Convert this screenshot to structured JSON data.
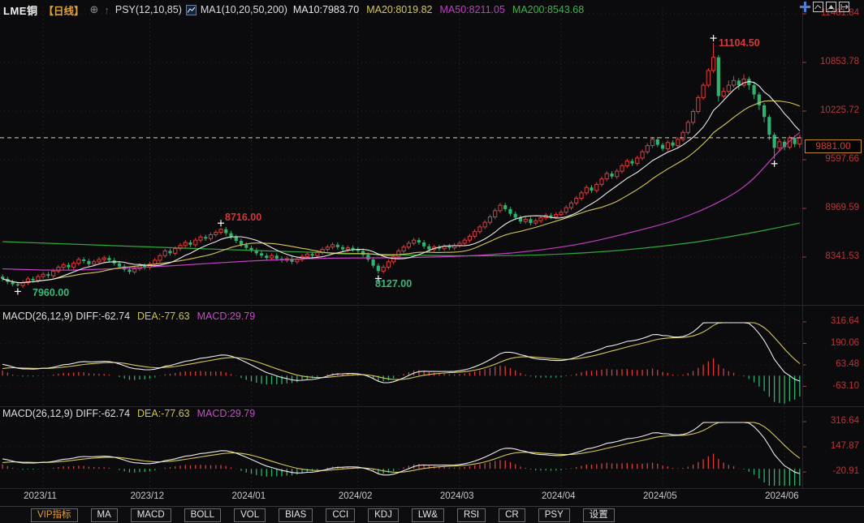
{
  "header": {
    "symbol": "LME铜",
    "period_label": "【日线】",
    "compare_icon_glyph": "⊕",
    "signal_arrow_glyph": "↑",
    "psy_label": "PSY(12,10,85)",
    "ma_group_label": "MA1(10,20,50,200)",
    "ma_readouts": [
      {
        "text": "MA10:7983.70",
        "color": "#e8e8e8"
      },
      {
        "text": "MA20:8019.82",
        "color": "#d6c858"
      },
      {
        "text": "MA50:8211.05",
        "color": "#c23ec2"
      },
      {
        "text": "MA200:8543.68",
        "color": "#3cb54a"
      }
    ]
  },
  "y_axis": {
    "tick_labels": [
      "11481.84",
      "10853.78",
      "10225.72",
      "9597.66",
      "8969.59",
      "8341.53"
    ],
    "last_price_label": "9881.00"
  },
  "x_axis": {
    "labels": [
      "2023/11",
      "2023/12",
      "2024/01",
      "2024/02",
      "2024/03",
      "2024/04",
      "2024/05",
      "2024/06"
    ]
  },
  "macd_panels": [
    {
      "name": "MACD(26,12,9)",
      "diff": "DIFF:-62.74",
      "dea": "DEA:-77.63",
      "macd": "MACD:29.79",
      "tick_labels": [
        "316.64",
        "190.06",
        "63.48",
        "-63.10"
      ]
    },
    {
      "name": "MACD(26,12,9)",
      "diff": "DIFF:-62.74",
      "dea": "DEA:-77.63",
      "macd": "MACD:29.79",
      "tick_labels": [
        "316.64",
        "147.87",
        "-20.91"
      ]
    }
  ],
  "toolbar": {
    "items": [
      "VIP指标",
      "MA",
      "MACD",
      "BOLL",
      "VOL",
      "BIAS",
      "CCI",
      "KDJ",
      "LW&",
      "RSI",
      "CR",
      "PSY",
      "设置"
    ]
  },
  "colors": {
    "up": "#e23b3b",
    "down": "#2fb36e",
    "ma10": "#ececec",
    "ma20": "#d6c858",
    "ma50": "#c23ec2",
    "ma200": "#2eaa3c",
    "axis_text": "#b13a3a",
    "last_price_line": "#e6d3ae",
    "annotation_up": "#d03a3a",
    "annotation_down": "#3cb878",
    "vip_accent": "#e0a040"
  },
  "chart_data": {
    "type": "candlestick+macd",
    "symbol": "LME铜",
    "period": "日线",
    "y_axis": {
      "gridline_prices": [
        11481.84,
        10853.78,
        10225.72,
        9597.66,
        8969.59,
        8341.53
      ],
      "last_price": 9881.0
    },
    "x_axis": {
      "labels": [
        "2023/11",
        "2023/12",
        "2024/01",
        "2024/02",
        "2024/03",
        "2024/04",
        "2024/05",
        "2024/06"
      ],
      "tick_candle_indices": [
        8,
        29,
        49,
        70,
        90,
        110,
        130,
        154
      ]
    },
    "extremes": [
      {
        "index": 3,
        "type": "low",
        "price": 7960.0,
        "label": "7960.00"
      },
      {
        "index": 43,
        "type": "high",
        "price": 8716.0,
        "label": "8716.00"
      },
      {
        "index": 74,
        "type": "low",
        "price": 8127.0,
        "label": "8127.00"
      },
      {
        "index": 140,
        "type": "high",
        "price": 11104.5,
        "label": "11104.50"
      },
      {
        "index": 152,
        "type": "low",
        "price": 9610,
        "label": ""
      }
    ],
    "candles": [
      [
        8090,
        8120,
        8030,
        8060
      ],
      [
        8060,
        8090,
        7990,
        8020
      ],
      [
        8020,
        8050,
        7965,
        7990
      ],
      [
        7990,
        8020,
        7960,
        7975
      ],
      [
        7975,
        8040,
        7945,
        8010
      ],
      [
        8010,
        8090,
        7980,
        8060
      ],
      [
        8060,
        8090,
        8010,
        8040
      ],
      [
        8040,
        8120,
        8010,
        8090
      ],
      [
        8090,
        8150,
        8060,
        8120
      ],
      [
        8120,
        8150,
        8070,
        8100
      ],
      [
        8100,
        8190,
        8070,
        8160
      ],
      [
        8160,
        8240,
        8130,
        8210
      ],
      [
        8210,
        8270,
        8180,
        8240
      ],
      [
        8240,
        8270,
        8180,
        8210
      ],
      [
        8210,
        8290,
        8180,
        8260
      ],
      [
        8260,
        8340,
        8230,
        8310
      ],
      [
        8310,
        8340,
        8260,
        8290
      ],
      [
        8290,
        8320,
        8220,
        8250
      ],
      [
        8250,
        8310,
        8220,
        8280
      ],
      [
        8280,
        8340,
        8250,
        8310
      ],
      [
        8310,
        8360,
        8280,
        8330
      ],
      [
        8330,
        8360,
        8270,
        8300
      ],
      [
        8300,
        8330,
        8230,
        8260
      ],
      [
        8260,
        8290,
        8190,
        8220
      ],
      [
        8220,
        8250,
        8150,
        8180
      ],
      [
        8180,
        8210,
        8120,
        8150
      ],
      [
        8150,
        8220,
        8120,
        8190
      ],
      [
        8190,
        8260,
        8160,
        8230
      ],
      [
        8230,
        8260,
        8180,
        8210
      ],
      [
        8210,
        8280,
        8180,
        8250
      ],
      [
        8250,
        8330,
        8220,
        8300
      ],
      [
        8300,
        8390,
        8270,
        8360
      ],
      [
        8360,
        8450,
        8330,
        8420
      ],
      [
        8420,
        8450,
        8360,
        8390
      ],
      [
        8390,
        8480,
        8360,
        8450
      ],
      [
        8450,
        8520,
        8420,
        8490
      ],
      [
        8490,
        8560,
        8460,
        8530
      ],
      [
        8530,
        8560,
        8470,
        8500
      ],
      [
        8500,
        8590,
        8470,
        8560
      ],
      [
        8560,
        8630,
        8530,
        8600
      ],
      [
        8600,
        8630,
        8550,
        8580
      ],
      [
        8580,
        8660,
        8550,
        8630
      ],
      [
        8630,
        8690,
        8600,
        8660
      ],
      [
        8660,
        8716,
        8630,
        8700
      ],
      [
        8700,
        8730,
        8620,
        8650
      ],
      [
        8650,
        8680,
        8570,
        8600
      ],
      [
        8600,
        8630,
        8520,
        8550
      ],
      [
        8550,
        8580,
        8470,
        8500
      ],
      [
        8500,
        8530,
        8430,
        8460
      ],
      [
        8460,
        8490,
        8400,
        8430
      ],
      [
        8430,
        8460,
        8360,
        8390
      ],
      [
        8390,
        8420,
        8330,
        8360
      ],
      [
        8360,
        8390,
        8300,
        8330
      ],
      [
        8330,
        8390,
        8300,
        8360
      ],
      [
        8360,
        8390,
        8290,
        8320
      ],
      [
        8320,
        8350,
        8270,
        8300
      ],
      [
        8300,
        8350,
        8270,
        8320
      ],
      [
        8320,
        8350,
        8250,
        8280
      ],
      [
        8280,
        8340,
        8250,
        8310
      ],
      [
        8310,
        8380,
        8280,
        8350
      ],
      [
        8350,
        8410,
        8320,
        8380
      ],
      [
        8380,
        8410,
        8330,
        8360
      ],
      [
        8360,
        8430,
        8330,
        8400
      ],
      [
        8400,
        8470,
        8370,
        8440
      ],
      [
        8440,
        8500,
        8410,
        8470
      ],
      [
        8470,
        8530,
        8440,
        8500
      ],
      [
        8500,
        8530,
        8440,
        8470
      ],
      [
        8470,
        8500,
        8410,
        8440
      ],
      [
        8440,
        8490,
        8410,
        8460
      ],
      [
        8460,
        8490,
        8410,
        8440
      ],
      [
        8440,
        8470,
        8390,
        8420
      ],
      [
        8420,
        8450,
        8340,
        8370
      ],
      [
        8370,
        8400,
        8280,
        8310
      ],
      [
        8310,
        8340,
        8200,
        8230
      ],
      [
        8230,
        8260,
        8127,
        8160
      ],
      [
        8160,
        8240,
        8130,
        8210
      ],
      [
        8210,
        8310,
        8180,
        8280
      ],
      [
        8280,
        8380,
        8250,
        8350
      ],
      [
        8350,
        8450,
        8320,
        8420
      ],
      [
        8420,
        8500,
        8390,
        8470
      ],
      [
        8470,
        8550,
        8440,
        8520
      ],
      [
        8520,
        8590,
        8490,
        8560
      ],
      [
        8560,
        8590,
        8500,
        8530
      ],
      [
        8530,
        8560,
        8450,
        8480
      ],
      [
        8480,
        8510,
        8410,
        8440
      ],
      [
        8440,
        8500,
        8410,
        8470
      ],
      [
        8470,
        8500,
        8420,
        8450
      ],
      [
        8450,
        8510,
        8420,
        8480
      ],
      [
        8480,
        8510,
        8430,
        8460
      ],
      [
        8460,
        8520,
        8430,
        8490
      ],
      [
        8490,
        8550,
        8460,
        8520
      ],
      [
        8520,
        8590,
        8490,
        8560
      ],
      [
        8560,
        8640,
        8530,
        8610
      ],
      [
        8610,
        8700,
        8580,
        8670
      ],
      [
        8670,
        8760,
        8640,
        8730
      ],
      [
        8730,
        8820,
        8700,
        8790
      ],
      [
        8790,
        8890,
        8760,
        8860
      ],
      [
        8860,
        8970,
        8830,
        8940
      ],
      [
        8940,
        9040,
        8910,
        9010
      ],
      [
        9010,
        9040,
        8930,
        8960
      ],
      [
        8960,
        8990,
        8870,
        8900
      ],
      [
        8900,
        8930,
        8820,
        8850
      ],
      [
        8850,
        8880,
        8770,
        8800
      ],
      [
        8800,
        8860,
        8770,
        8830
      ],
      [
        8830,
        8860,
        8750,
        8780
      ],
      [
        8780,
        8840,
        8750,
        8810
      ],
      [
        8810,
        8880,
        8780,
        8850
      ],
      [
        8850,
        8910,
        8820,
        8880
      ],
      [
        8880,
        8910,
        8830,
        8860
      ],
      [
        8860,
        8920,
        8830,
        8890
      ],
      [
        8890,
        8950,
        8860,
        8920
      ],
      [
        8920,
        9010,
        8890,
        8980
      ],
      [
        8980,
        9070,
        8950,
        9040
      ],
      [
        9040,
        9130,
        9010,
        9100
      ],
      [
        9100,
        9200,
        9070,
        9170
      ],
      [
        9170,
        9270,
        9140,
        9240
      ],
      [
        9240,
        9270,
        9170,
        9200
      ],
      [
        9200,
        9310,
        9170,
        9280
      ],
      [
        9280,
        9380,
        9250,
        9350
      ],
      [
        9350,
        9450,
        9320,
        9420
      ],
      [
        9420,
        9450,
        9350,
        9380
      ],
      [
        9380,
        9480,
        9350,
        9450
      ],
      [
        9450,
        9550,
        9420,
        9520
      ],
      [
        9520,
        9610,
        9490,
        9580
      ],
      [
        9580,
        9610,
        9520,
        9550
      ],
      [
        9550,
        9650,
        9520,
        9620
      ],
      [
        9620,
        9730,
        9590,
        9700
      ],
      [
        9700,
        9810,
        9670,
        9780
      ],
      [
        9780,
        9890,
        9750,
        9860
      ],
      [
        9860,
        9890,
        9760,
        9790
      ],
      [
        9790,
        9820,
        9710,
        9740
      ],
      [
        9740,
        9850,
        9710,
        9820
      ],
      [
        9820,
        9850,
        9750,
        9780
      ],
      [
        9780,
        9890,
        9750,
        9860
      ],
      [
        9860,
        9980,
        9830,
        9950
      ],
      [
        9950,
        10110,
        9920,
        10080
      ],
      [
        10080,
        10250,
        10050,
        10220
      ],
      [
        10220,
        10430,
        10190,
        10400
      ],
      [
        10400,
        10590,
        10370,
        10560
      ],
      [
        10560,
        10780,
        10530,
        10750
      ],
      [
        10750,
        11104.5,
        10720,
        10920
      ],
      [
        10920,
        10950,
        10350,
        10420
      ],
      [
        10420,
        10530,
        10390,
        10480
      ],
      [
        10480,
        10620,
        10450,
        10560
      ],
      [
        10560,
        10680,
        10530,
        10620
      ],
      [
        10620,
        10650,
        10500,
        10560
      ],
      [
        10560,
        10700,
        10530,
        10640
      ],
      [
        10640,
        10670,
        10500,
        10560
      ],
      [
        10560,
        10590,
        10380,
        10440
      ],
      [
        10440,
        10470,
        10240,
        10300
      ],
      [
        10300,
        10330,
        10080,
        10150
      ],
      [
        10150,
        10180,
        9850,
        9920
      ],
      [
        9920,
        9950,
        9610,
        9750
      ],
      [
        9750,
        9870,
        9700,
        9830
      ],
      [
        9830,
        9860,
        9720,
        9760
      ],
      [
        9760,
        9910,
        9730,
        9880
      ],
      [
        9880,
        9910,
        9760,
        9800
      ],
      [
        9800,
        9920,
        9750,
        9881
      ]
    ],
    "overlays": {
      "ma10": {
        "window": 10
      },
      "ma20": {
        "window": 20
      },
      "ma50": {
        "anchors": [
          [
            0,
            8190
          ],
          [
            10,
            8165
          ],
          [
            20,
            8185
          ],
          [
            30,
            8215
          ],
          [
            43,
            8270
          ],
          [
            55,
            8310
          ],
          [
            65,
            8330
          ],
          [
            75,
            8330
          ],
          [
            85,
            8340
          ],
          [
            95,
            8365
          ],
          [
            105,
            8420
          ],
          [
            115,
            8520
          ],
          [
            125,
            8680
          ],
          [
            132,
            8800
          ],
          [
            138,
            8950
          ],
          [
            144,
            9150
          ],
          [
            148,
            9350
          ],
          [
            152,
            9650
          ],
          [
            155,
            9840
          ],
          [
            157,
            9950
          ]
        ]
      },
      "ma200": {
        "anchors": [
          [
            0,
            8540
          ],
          [
            15,
            8505
          ],
          [
            30,
            8470
          ],
          [
            45,
            8435
          ],
          [
            60,
            8405
          ],
          [
            75,
            8375
          ],
          [
            85,
            8360
          ],
          [
            95,
            8355
          ],
          [
            105,
            8365
          ],
          [
            115,
            8395
          ],
          [
            125,
            8445
          ],
          [
            135,
            8520
          ],
          [
            142,
            8590
          ],
          [
            148,
            8660
          ],
          [
            153,
            8725
          ],
          [
            157,
            8780
          ]
        ]
      }
    },
    "macd": {
      "params": [
        26,
        12,
        9
      ],
      "readout": {
        "diff": -62.74,
        "dea": -77.63,
        "macd": 29.79
      },
      "panel_ticks": [
        [
          316.64,
          190.06,
          63.48,
          -63.1
        ],
        [
          316.64,
          147.87,
          -20.91
        ]
      ]
    }
  }
}
